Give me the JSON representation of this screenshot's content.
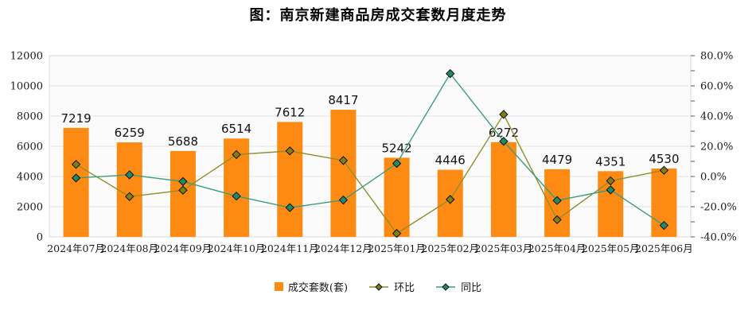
{
  "title": "图：南京新建商品房成交套数月度走势",
  "legend": {
    "items": [
      {
        "label": "成交套数(套)",
        "type": "bar",
        "color": "#fd8a12"
      },
      {
        "label": "环比",
        "type": "line",
        "line_color": "#8f8f2a",
        "marker_color": "#7f7f0f"
      },
      {
        "label": "同比",
        "type": "line",
        "line_color": "#3b9c7c",
        "marker_color": "#1e8a66"
      }
    ]
  },
  "chart_data": {
    "type": "combo-bar-line",
    "title": "图：南京新建商品房成交套数月度走势",
    "categories": [
      "2024年07月",
      "2024年08月",
      "2024年09月",
      "2024年10月",
      "2024年11月",
      "2024年12月",
      "2025年01月",
      "2025年02月",
      "2025年03月",
      "2025年04月",
      "2025年05月",
      "2025年06月"
    ],
    "series": [
      {
        "name": "成交套数(套)",
        "type": "bar",
        "axis": "left",
        "color": "#fd8a12",
        "values": [
          7219,
          6259,
          5688,
          6514,
          7612,
          8417,
          5242,
          4446,
          6272,
          4479,
          4351,
          4530
        ],
        "data_labels": [
          "7219",
          "6259",
          "5688",
          "6514",
          "7612",
          "8417",
          "5242",
          "4446",
          "6272",
          "4479",
          "4351",
          "4530"
        ]
      },
      {
        "name": "环比",
        "type": "line",
        "axis": "right",
        "unit": "%",
        "line_color": "#8f8f2a",
        "marker_color": "#7f7f0f",
        "values": [
          8.0,
          -13.3,
          -9.1,
          14.5,
          16.9,
          10.6,
          -37.7,
          -15.2,
          41.1,
          -28.6,
          -2.9,
          4.1
        ]
      },
      {
        "name": "同比",
        "type": "line",
        "axis": "right",
        "unit": "%",
        "line_color": "#3b9c7c",
        "marker_color": "#1e8a66",
        "values": [
          -1.0,
          1.1,
          -3.3,
          -13.0,
          -20.6,
          -15.6,
          8.6,
          68.1,
          23.3,
          -15.9,
          -8.9,
          -32.4
        ]
      }
    ],
    "left_axis": {
      "min": 0,
      "max": 12000,
      "tick_step": 2000,
      "tick_labels": [
        "0",
        "2000",
        "4000",
        "6000",
        "8000",
        "10000",
        "12000"
      ]
    },
    "right_axis": {
      "min": -40,
      "max": 80,
      "label_step": 20,
      "minor_tick_step": 10,
      "tick_labels": [
        "-40.0%",
        "-20.0%",
        "0.0%",
        "20.0%",
        "40.0%",
        "60.0%",
        "80.0%"
      ]
    },
    "grid": true,
    "legend_position": "bottom"
  },
  "colors": {
    "grid": "#e3e3e3",
    "plot_border": "#d8d8d8",
    "plot_bg": "#fbfbfb",
    "axis_text": "#1a1a1a",
    "marker_stroke": "#111111",
    "tick": "#555555"
  }
}
